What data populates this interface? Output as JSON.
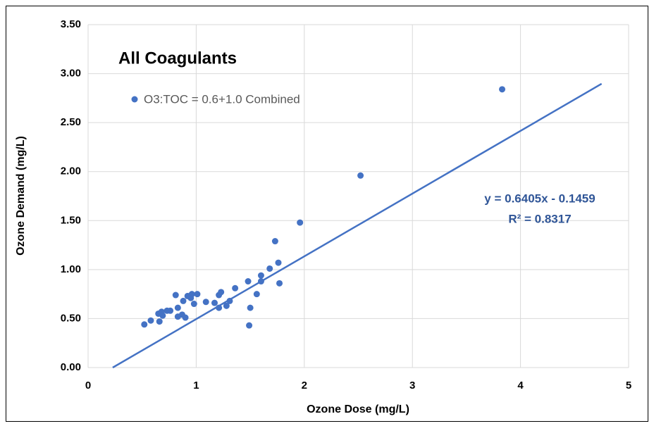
{
  "chart_data": {
    "type": "scatter",
    "title": "All Coagulants",
    "x_label": "Ozone Dose (mg/L)",
    "y_label": "Ozone Demand (mg/L)",
    "xlim": [
      0,
      5
    ],
    "xticks": [
      0,
      1,
      2,
      3,
      4,
      5
    ],
    "ylim": [
      0,
      3.5
    ],
    "yticks": [
      {
        "value": 0,
        "label": "0.00"
      },
      {
        "value": 0.5,
        "label": "0.50"
      },
      {
        "value": 1,
        "label": "1.00"
      },
      {
        "value": 1.5,
        "label": "1.50"
      },
      {
        "value": 2,
        "label": "2.00"
      },
      {
        "value": 2.5,
        "label": "2.50"
      },
      {
        "value": 3,
        "label": "3.00"
      },
      {
        "value": 3.5,
        "label": "3.50"
      }
    ],
    "grid": true,
    "legend": "upper left",
    "series": [
      {
        "name": "O3:TOC = 0.6+1.0 Combined",
        "color": "#4472c4",
        "x": [
          0.52,
          0.58,
          0.65,
          0.66,
          0.68,
          0.69,
          0.73,
          0.76,
          0.81,
          0.83,
          0.83,
          0.87,
          0.88,
          0.9,
          0.92,
          0.95,
          0.96,
          0.98,
          1.01,
          1.09,
          1.17,
          1.21,
          1.21,
          1.23,
          1.28,
          1.31,
          1.36,
          1.48,
          1.5,
          1.49,
          1.56,
          1.6,
          1.6,
          1.68,
          1.73,
          1.76,
          1.77,
          1.96,
          2.52,
          3.83
        ],
        "values": [
          0.44,
          0.48,
          0.55,
          0.47,
          0.57,
          0.53,
          0.58,
          0.58,
          0.74,
          0.61,
          0.52,
          0.54,
          0.68,
          0.51,
          0.73,
          0.71,
          0.75,
          0.65,
          0.75,
          0.67,
          0.66,
          0.74,
          0.61,
          0.77,
          0.63,
          0.68,
          0.81,
          0.88,
          0.61,
          0.43,
          0.75,
          0.94,
          0.88,
          1.01,
          1.29,
          1.07,
          0.86,
          1.48,
          1.96,
          2.84
        ]
      }
    ],
    "trendline": {
      "slope": 0.6405,
      "intercept": -0.1459,
      "x_end": 4.75,
      "label": "y = 0.6405x - 0.1459",
      "r2_label": "R² = 0.8317"
    }
  }
}
